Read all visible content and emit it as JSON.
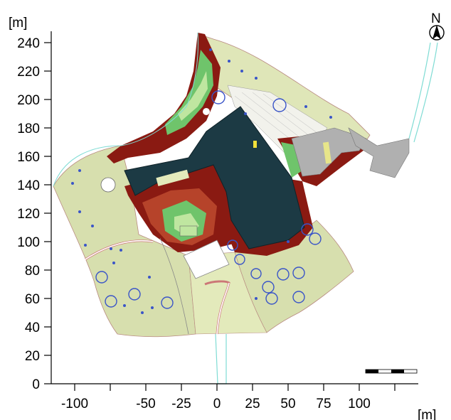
{
  "map": {
    "y_axis": {
      "unit_label": "[m]",
      "ticks": [
        "240",
        "220",
        "200",
        "180",
        "160",
        "140",
        "120",
        "100",
        "80",
        "60",
        "40",
        "20",
        "0"
      ]
    },
    "x_axis": {
      "unit_label": "[m]",
      "ticks": [
        "-100",
        "-50",
        "-25",
        "0",
        "25",
        "50",
        "75",
        "100"
      ]
    },
    "north_arrow": {
      "label": "N"
    },
    "scale_bar": {
      "segments": 4
    },
    "colors": {
      "terrain": "#d7dfae",
      "terrain_light": "#e6ebc2",
      "building": "#1c3a44",
      "heat_dark": "#8a1a12",
      "heat_mid": "#b6432a",
      "heat_green": "#6fc46b",
      "heat_light": "#bfe6a0",
      "cyan": "#7fdcd4",
      "tree": "#3a55c8",
      "paved": "#b0b0b0"
    },
    "icons": [
      "north-arrow-icon",
      "scale-bar-icon",
      "tree-icon"
    ]
  }
}
